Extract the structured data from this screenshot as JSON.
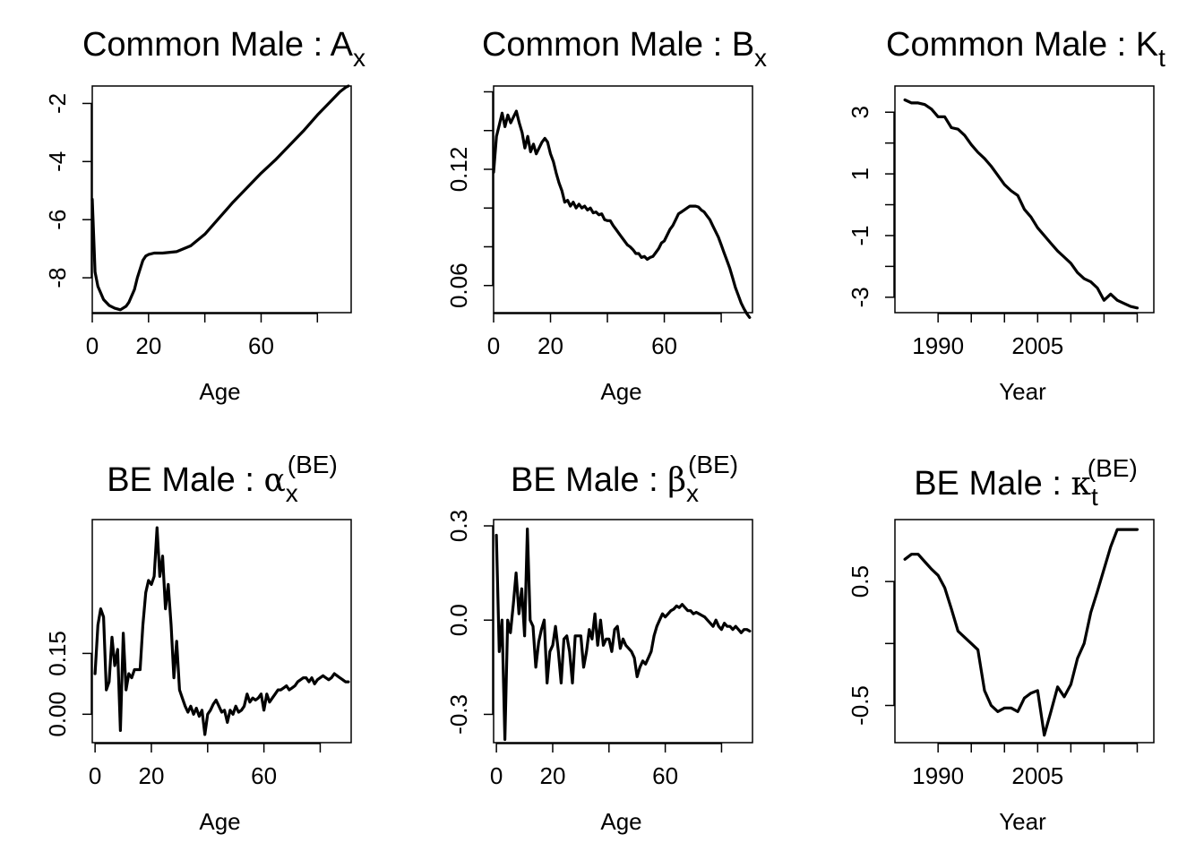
{
  "chart_data": [
    {
      "type": "line",
      "title": {
        "prefix": "Common Male",
        "symbol": "A",
        "subscript": "x",
        "superscript": ""
      },
      "xlabel": "Age",
      "ylabel": "",
      "xlim": [
        0,
        92
      ],
      "ylim": [
        -9.2,
        -1.4
      ],
      "x_ticks": [
        0,
        20,
        40,
        60,
        80
      ],
      "x_tick_labels": [
        "0",
        "20",
        "",
        "60",
        ""
      ],
      "y_ticks": [
        -8,
        -6,
        -4,
        -2
      ],
      "y_tick_labels": [
        "-8",
        "-6",
        "-4",
        "-2"
      ],
      "grid": false,
      "series": [
        {
          "x": [
            0,
            1,
            2,
            4,
            6,
            8,
            10,
            12,
            13,
            15,
            16,
            17,
            18,
            19,
            20,
            22,
            25,
            30,
            35,
            40,
            45,
            50,
            55,
            60,
            65,
            70,
            75,
            80,
            85,
            88,
            90,
            91
          ],
          "values": [
            -5.3,
            -7.8,
            -8.3,
            -8.75,
            -8.95,
            -9.05,
            -9.1,
            -8.98,
            -8.85,
            -8.4,
            -8.0,
            -7.7,
            -7.4,
            -7.25,
            -7.2,
            -7.15,
            -7.15,
            -7.1,
            -6.9,
            -6.5,
            -5.95,
            -5.4,
            -4.9,
            -4.4,
            -3.95,
            -3.45,
            -2.95,
            -2.4,
            -1.9,
            -1.6,
            -1.45,
            -1.4
          ]
        }
      ]
    },
    {
      "type": "line",
      "title": {
        "prefix": "Common Male",
        "symbol": "B",
        "subscript": "x",
        "superscript": ""
      },
      "xlabel": "Age",
      "ylabel": "",
      "xlim": [
        0,
        91
      ],
      "ylim": [
        0.046,
        0.163
      ],
      "x_ticks": [
        0,
        20,
        40,
        60,
        80
      ],
      "x_tick_labels": [
        "0",
        "20",
        "",
        "60",
        ""
      ],
      "y_ticks": [
        0.06,
        0.08,
        0.1,
        0.12,
        0.14,
        0.16
      ],
      "y_tick_labels": [
        "0.06",
        "",
        "",
        "0.12",
        "",
        ""
      ],
      "grid": false,
      "series": [
        {
          "x": [
            0,
            1,
            2,
            3,
            4,
            5,
            6,
            7,
            8,
            9,
            10,
            11,
            12,
            13,
            14,
            15,
            16,
            17,
            18,
            19,
            20,
            21,
            22,
            23,
            24,
            25,
            26,
            27,
            28,
            29,
            30,
            31,
            32,
            33,
            34,
            35,
            36,
            37,
            38,
            39,
            40,
            41,
            42,
            43,
            44,
            45,
            46,
            47,
            48,
            49,
            50,
            51,
            52,
            53,
            54,
            55,
            56,
            57,
            58,
            59,
            60,
            61,
            62,
            63,
            64,
            65,
            66,
            67,
            68,
            69,
            70,
            71,
            72,
            73,
            74,
            75,
            76,
            77,
            78,
            79,
            80,
            81,
            82,
            83,
            84,
            85,
            86,
            87,
            88,
            89,
            90
          ],
          "values": [
            0.1185,
            0.137,
            0.143,
            0.149,
            0.142,
            0.148,
            0.144,
            0.147,
            0.15,
            0.144,
            0.139,
            0.131,
            0.137,
            0.129,
            0.133,
            0.128,
            0.131,
            0.134,
            0.136,
            0.134,
            0.128,
            0.124,
            0.118,
            0.113,
            0.109,
            0.103,
            0.104,
            0.101,
            0.103,
            0.1,
            0.102,
            0.1,
            0.101,
            0.099,
            0.1,
            0.0975,
            0.098,
            0.0965,
            0.097,
            0.094,
            0.0935,
            0.0935,
            0.091,
            0.089,
            0.087,
            0.085,
            0.083,
            0.081,
            0.08,
            0.0785,
            0.0765,
            0.0765,
            0.0745,
            0.075,
            0.0735,
            0.0745,
            0.075,
            0.077,
            0.079,
            0.082,
            0.083,
            0.086,
            0.089,
            0.091,
            0.094,
            0.097,
            0.098,
            0.099,
            0.1,
            0.101,
            0.101,
            0.101,
            0.1005,
            0.099,
            0.098,
            0.096,
            0.094,
            0.091,
            0.088,
            0.085,
            0.081,
            0.077,
            0.073,
            0.069,
            0.064,
            0.059,
            0.055,
            0.051,
            0.048,
            0.0455,
            0.0435
          ]
        }
      ]
    },
    {
      "type": "line",
      "title": {
        "prefix": "Common Male",
        "symbol": "K",
        "subscript": "t",
        "superscript": ""
      },
      "xlabel": "Year",
      "ylabel": "",
      "xlim": [
        1983.5,
        2022.5
      ],
      "ylim": [
        -3.5,
        3.85
      ],
      "x_ticks": [
        1990,
        1995,
        2000,
        2005,
        2010,
        2015,
        2020
      ],
      "x_tick_labels": [
        "1990",
        "",
        "",
        "2005",
        "",
        "",
        ""
      ],
      "y_ticks": [
        -3,
        -2,
        -1,
        0,
        1,
        2,
        3
      ],
      "y_tick_labels": [
        "-3",
        "",
        "-1",
        "",
        "1",
        "",
        "3"
      ],
      "grid": false,
      "series": [
        {
          "x": [
            1985,
            1986,
            1987,
            1988,
            1989,
            1990,
            1991,
            1992,
            1993,
            1994,
            1995,
            1996,
            1997,
            1998,
            1999,
            2000,
            2001,
            2002,
            2003,
            2004,
            2005,
            2006,
            2007,
            2008,
            2009,
            2010,
            2011,
            2012,
            2013,
            2014,
            2015,
            2016,
            2017,
            2018,
            2019,
            2020
          ],
          "values": [
            3.4,
            3.3,
            3.3,
            3.25,
            3.1,
            2.85,
            2.85,
            2.5,
            2.45,
            2.25,
            1.95,
            1.7,
            1.5,
            1.25,
            0.95,
            0.65,
            0.45,
            0.3,
            -0.15,
            -0.4,
            -0.75,
            -1.0,
            -1.25,
            -1.5,
            -1.7,
            -1.9,
            -2.2,
            -2.4,
            -2.5,
            -2.7,
            -3.1,
            -2.9,
            -3.1,
            -3.2,
            -3.3,
            -3.35
          ]
        }
      ]
    },
    {
      "type": "line",
      "title": {
        "prefix": "BE Male",
        "symbol": "α",
        "subscript": "x",
        "superscript": "(BE)"
      },
      "xlabel": "Age",
      "ylabel": "",
      "xlim": [
        -1,
        91
      ],
      "ylim": [
        -0.07,
        0.48
      ],
      "x_ticks": [
        0,
        20,
        40,
        60,
        80
      ],
      "x_tick_labels": [
        "0",
        "20",
        "",
        "60",
        ""
      ],
      "y_ticks": [
        0.0,
        0.15
      ],
      "y_tick_labels": [
        "0.00",
        "0.15"
      ],
      "grid": false,
      "series": [
        {
          "x": [
            0,
            1,
            2,
            3,
            4,
            5,
            6,
            7,
            8,
            9,
            10,
            11,
            12,
            13,
            14,
            15,
            16,
            17,
            18,
            19,
            20,
            21,
            22,
            23,
            24,
            25,
            26,
            27,
            28,
            29,
            30,
            31,
            32,
            33,
            34,
            35,
            36,
            37,
            38,
            39,
            40,
            41,
            42,
            43,
            44,
            45,
            46,
            47,
            48,
            49,
            50,
            51,
            52,
            53,
            54,
            55,
            56,
            57,
            58,
            59,
            60,
            61,
            62,
            63,
            64,
            65,
            66,
            67,
            68,
            69,
            70,
            71,
            72,
            73,
            74,
            75,
            76,
            77,
            78,
            79,
            80,
            81,
            82,
            83,
            84,
            85,
            86,
            87,
            88,
            89,
            90
          ],
          "values": [
            0.1,
            0.22,
            0.26,
            0.24,
            0.06,
            0.08,
            0.19,
            0.12,
            0.16,
            -0.04,
            0.2,
            0.06,
            0.1,
            0.09,
            0.11,
            0.11,
            0.11,
            0.22,
            0.3,
            0.33,
            0.32,
            0.34,
            0.46,
            0.34,
            0.39,
            0.26,
            0.32,
            0.22,
            0.09,
            0.18,
            0.06,
            0.04,
            0.02,
            0.005,
            0.02,
            0.0,
            0.015,
            -0.005,
            0.01,
            -0.05,
            0.0,
            0.01,
            0.025,
            0.035,
            0.02,
            0.005,
            0.01,
            -0.02,
            0.01,
            0.0,
            0.02,
            0.005,
            0.01,
            0.02,
            0.05,
            0.03,
            0.04,
            0.035,
            0.04,
            0.05,
            0.01,
            0.05,
            0.03,
            0.04,
            0.05,
            0.06,
            0.06,
            0.065,
            0.07,
            0.06,
            0.065,
            0.07,
            0.08,
            0.085,
            0.09,
            0.09,
            0.08,
            0.09,
            0.075,
            0.085,
            0.09,
            0.095,
            0.09,
            0.085,
            0.09,
            0.1,
            0.095,
            0.09,
            0.085,
            0.08,
            0.08
          ]
        }
      ]
    },
    {
      "type": "line",
      "title": {
        "prefix": "BE Male",
        "symbol": "β",
        "subscript": "x",
        "superscript": "(BE)"
      },
      "xlabel": "Age",
      "ylabel": "",
      "xlim": [
        -1,
        91
      ],
      "ylim": [
        -0.39,
        0.32
      ],
      "x_ticks": [
        0,
        20,
        40,
        60,
        80
      ],
      "x_tick_labels": [
        "0",
        "20",
        "",
        "60",
        ""
      ],
      "y_ticks": [
        -0.3,
        0.0,
        0.3
      ],
      "y_tick_labels": [
        "-0.3",
        "0.0",
        "0.3"
      ],
      "grid": false,
      "series": [
        {
          "x": [
            0,
            1,
            2,
            3,
            4,
            5,
            6,
            7,
            8,
            9,
            10,
            11,
            12,
            13,
            14,
            15,
            16,
            17,
            18,
            19,
            20,
            21,
            22,
            23,
            24,
            25,
            26,
            27,
            28,
            29,
            30,
            31,
            32,
            33,
            34,
            35,
            36,
            37,
            38,
            39,
            40,
            41,
            42,
            43,
            44,
            45,
            46,
            47,
            48,
            49,
            50,
            51,
            52,
            53,
            54,
            55,
            56,
            57,
            58,
            59,
            60,
            61,
            62,
            63,
            64,
            65,
            66,
            67,
            68,
            69,
            70,
            71,
            72,
            73,
            74,
            75,
            76,
            77,
            78,
            79,
            80,
            81,
            82,
            83,
            84,
            85,
            86,
            87,
            88,
            89,
            90
          ],
          "values": [
            0.27,
            -0.1,
            0.0,
            -0.38,
            0.0,
            -0.04,
            0.05,
            0.15,
            0.02,
            0.1,
            -0.05,
            0.29,
            0.0,
            -0.02,
            -0.15,
            -0.07,
            -0.03,
            0.0,
            -0.2,
            -0.1,
            -0.08,
            -0.02,
            -0.1,
            -0.2,
            -0.06,
            -0.05,
            -0.1,
            -0.2,
            -0.05,
            -0.05,
            -0.05,
            -0.15,
            -0.1,
            -0.03,
            -0.06,
            0.02,
            -0.08,
            0.0,
            -0.08,
            -0.06,
            -0.06,
            -0.1,
            -0.03,
            -0.02,
            -0.09,
            -0.06,
            -0.08,
            -0.09,
            -0.1,
            -0.12,
            -0.18,
            -0.15,
            -0.13,
            -0.14,
            -0.12,
            -0.1,
            -0.05,
            -0.02,
            0.0,
            0.02,
            0.01,
            0.02,
            0.03,
            0.035,
            0.045,
            0.04,
            0.05,
            0.04,
            0.03,
            0.03,
            0.02,
            0.025,
            0.02,
            0.015,
            0.01,
            0.0,
            -0.01,
            -0.02,
            0.0,
            -0.02,
            -0.03,
            -0.01,
            -0.02,
            -0.02,
            -0.03,
            -0.02,
            -0.03,
            -0.04,
            -0.03,
            -0.03,
            -0.035
          ]
        }
      ]
    },
    {
      "type": "line",
      "title": {
        "prefix": "BE Male",
        "symbol": "κ",
        "subscript": "t",
        "superscript": "(BE)"
      },
      "xlabel": "Year",
      "ylabel": "",
      "xlim": [
        1983.5,
        2022.5
      ],
      "ylim": [
        -0.8,
        1.0
      ],
      "x_ticks": [
        1990,
        1995,
        2000,
        2005,
        2010,
        2015,
        2020
      ],
      "x_tick_labels": [
        "1990",
        "",
        "",
        "2005",
        "",
        "",
        ""
      ],
      "y_ticks": [
        -0.5,
        0.0,
        0.5
      ],
      "y_tick_labels": [
        "-0.5",
        "",
        "0.5"
      ],
      "grid": false,
      "series": [
        {
          "x": [
            1985,
            1986,
            1987,
            1988,
            1989,
            1990,
            1991,
            1992,
            1993,
            1994,
            1995,
            1996,
            1997,
            1998,
            1999,
            2000,
            2001,
            2002,
            2003,
            2004,
            2005,
            2006,
            2007,
            2008,
            2009,
            2010,
            2011,
            2012,
            2013,
            2014,
            2015,
            2016,
            2017,
            2018,
            2019,
            2020
          ],
          "values": [
            0.68,
            0.72,
            0.72,
            0.66,
            0.6,
            0.55,
            0.45,
            0.28,
            0.1,
            0.05,
            0.0,
            -0.05,
            -0.38,
            -0.5,
            -0.55,
            -0.52,
            -0.52,
            -0.55,
            -0.44,
            -0.4,
            -0.38,
            -0.74,
            -0.55,
            -0.35,
            -0.43,
            -0.33,
            -0.12,
            0.0,
            0.25,
            0.42,
            0.6,
            0.78,
            0.92,
            0.92,
            0.92,
            0.92
          ]
        }
      ]
    }
  ]
}
